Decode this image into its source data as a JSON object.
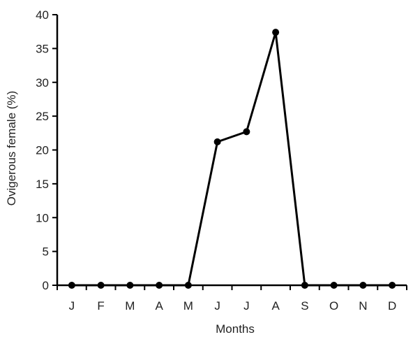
{
  "chart_data": {
    "type": "line",
    "title": "",
    "xlabel": "Months",
    "ylabel": "Ovigerous female (%)",
    "categories": [
      "J",
      "F",
      "M",
      "A",
      "M",
      "J",
      "J",
      "A",
      "S",
      "O",
      "N",
      "D"
    ],
    "series": [
      {
        "values": [
          0,
          0,
          0,
          0,
          0,
          21.2,
          22.7,
          37.4,
          0,
          0,
          0,
          0
        ]
      }
    ],
    "ylim": [
      0,
      40
    ],
    "yticks": [
      0,
      5,
      10,
      15,
      20,
      25,
      30,
      35,
      40
    ],
    "grid": false,
    "legend": "none",
    "line_color": "#000000"
  }
}
